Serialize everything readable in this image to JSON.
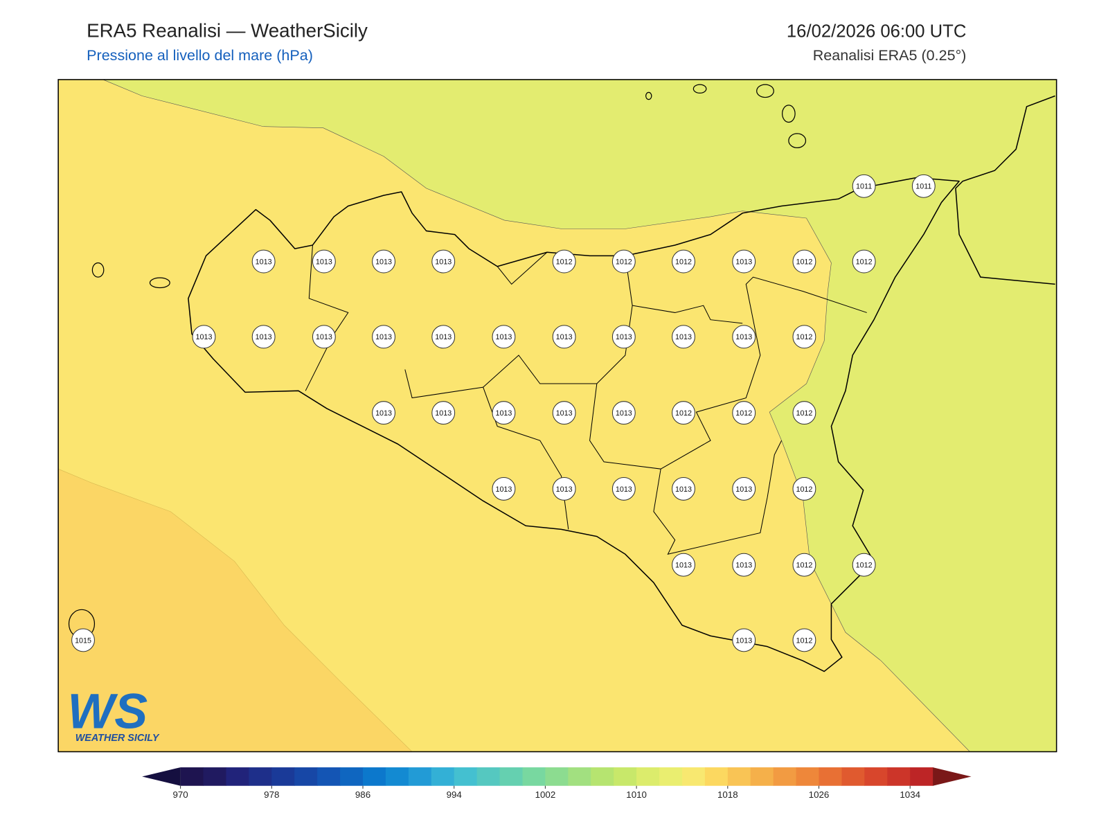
{
  "header": {
    "title": "ERA5 Reanalisi — WeatherSicily",
    "subtitle": "Pressione al livello del mare (hPa)",
    "datetime": "16/02/2026 06:00 UTC",
    "source": "Reanalisi ERA5 (0.25°)"
  },
  "stations": [
    1011,
    1011,
    1013,
    1013,
    1013,
    1013,
    1012,
    1012,
    1012,
    1013,
    1012,
    1012,
    1013,
    1013,
    1013,
    1013,
    1013,
    1013,
    1013,
    1013,
    1013,
    1013,
    1012,
    1013,
    1013,
    1013,
    1013,
    1013,
    1012,
    1012,
    1012,
    1013,
    1013,
    1013,
    1013,
    1013,
    1012,
    1013,
    1013,
    1012,
    1012,
    1015,
    1013,
    1012
  ],
  "colorbar": {
    "lim": [
      970,
      1036
    ],
    "step": 2,
    "ticks": [
      970,
      978,
      986,
      994,
      1002,
      1010,
      1018,
      1026,
      1034
    ],
    "colors": [
      "#1e1450",
      "#201a60",
      "#21237a",
      "#1e2f8a",
      "#1a3a98",
      "#1747a6",
      "#1455b4",
      "#0f66c0",
      "#0c78cc",
      "#138ad2",
      "#229bd6",
      "#33b0d6",
      "#44c0d0",
      "#55c8c0",
      "#65d0b0",
      "#78d8a0",
      "#8cdc90",
      "#a2e080",
      "#b6e470",
      "#c8e86a",
      "#dcec6c",
      "#eaee70",
      "#f8e870",
      "#fcd860",
      "#f9c455",
      "#f5b04a",
      "#f29b42",
      "#ee873a",
      "#e87034",
      "#e05a2f",
      "#d8462c",
      "#cc3529",
      "#bd2526"
    ],
    "under": "#150f40",
    "over": "#7a1818"
  },
  "logo": {
    "mark": "WS",
    "name": "WEATHER SICILY"
  }
}
